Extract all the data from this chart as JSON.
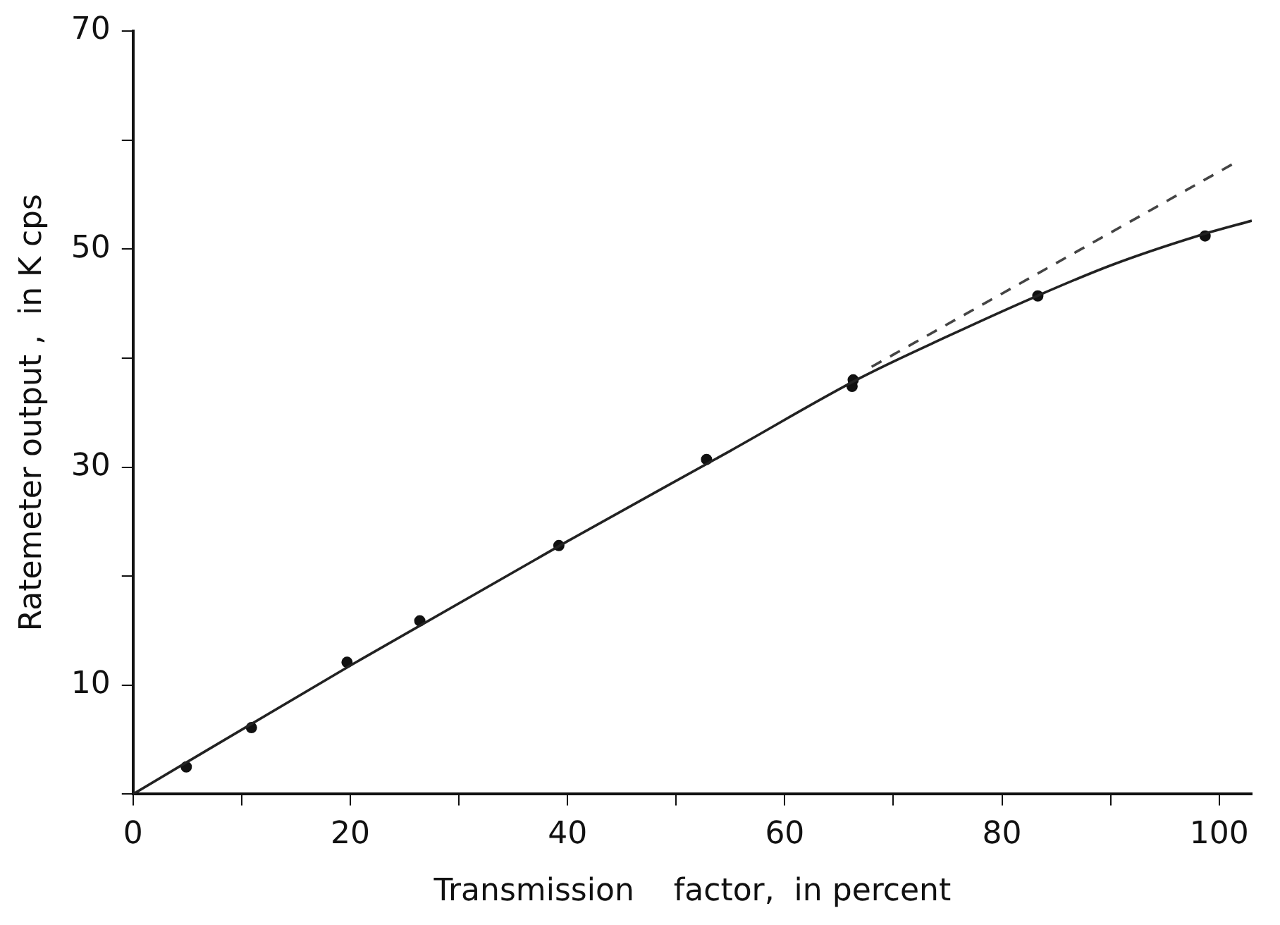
{
  "chart_data": {
    "type": "scatter",
    "xlabel": "Transmission    factor,  in percent",
    "ylabel": "Ratemeter output ,  in K cps",
    "xlim": [
      0,
      103
    ],
    "ylim": [
      0,
      70
    ],
    "xticks": [
      0,
      {
        "value": 10,
        "label": null
      },
      20,
      {
        "value": 30,
        "label": null
      },
      40,
      {
        "value": 50,
        "label": null
      },
      60,
      {
        "value": 70,
        "label": null
      },
      80,
      {
        "value": 90,
        "label": null
      },
      100
    ],
    "yticks": [
      {
        "value": 0,
        "label": null
      },
      10,
      {
        "value": 20,
        "label": null
      },
      30,
      {
        "value": 40,
        "label": null
      },
      50,
      {
        "value": 60,
        "label": null
      },
      70
    ],
    "grid": false,
    "legend": false,
    "series": [
      {
        "color": "#111111",
        "marker": "circle",
        "x": [
          4.9,
          10.9,
          19.7,
          26.4,
          39.2,
          52.8,
          66.2,
          66.3,
          83.3,
          98.7
        ],
        "values": [
          2.5,
          6.1,
          12.1,
          15.9,
          22.8,
          30.7,
          37.4,
          38.0,
          45.7,
          51.2
        ]
      },
      {
        "type": "line",
        "color": "#222222",
        "marker": "none",
        "line_style": "solid",
        "x": [
          0,
          20,
          40,
          55,
          67,
          75,
          83,
          90,
          98,
          103
        ],
        "values": [
          0,
          11.8,
          23.2,
          31.5,
          38.2,
          42,
          45.6,
          48.5,
          51.2,
          52.6
        ]
      },
      {
        "type": "line",
        "color": "#444444",
        "marker": "none",
        "line_style": "dashed",
        "x": [
          68,
          101.6
        ],
        "values": [
          39.2,
          58
        ]
      }
    ]
  }
}
